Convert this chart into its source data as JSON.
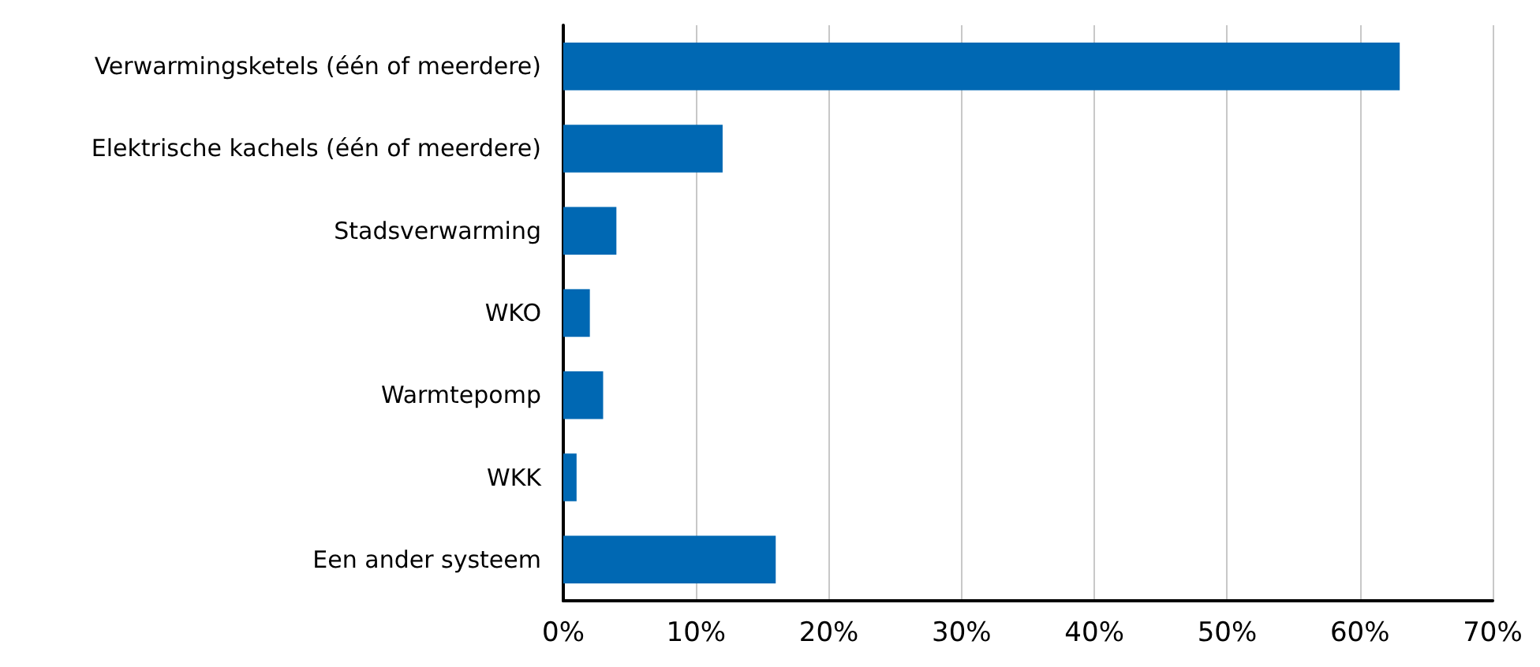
{
  "chart_data": {
    "type": "bar",
    "orientation": "horizontal",
    "categories": [
      "Verwarmingsketels (één of meerdere)",
      "Elektrische kachels (één of meerdere)",
      "Stadsverwarming",
      "WKO",
      "Warmtepomp",
      "WKK",
      "Een ander systeem"
    ],
    "values": [
      63,
      12,
      4,
      2,
      3,
      1,
      16
    ],
    "color": "#0068b3",
    "xlim": [
      0,
      70
    ],
    "xticks": [
      {
        "value": 0,
        "label": "0%"
      },
      {
        "value": 10,
        "label": "10%"
      },
      {
        "value": 20,
        "label": "20%"
      },
      {
        "value": 30,
        "label": "30%"
      },
      {
        "value": 40,
        "label": "40%"
      },
      {
        "value": 50,
        "label": "50%"
      },
      {
        "value": 60,
        "label": "60%"
      },
      {
        "value": 70,
        "label": "70%"
      }
    ],
    "grid": "x"
  }
}
